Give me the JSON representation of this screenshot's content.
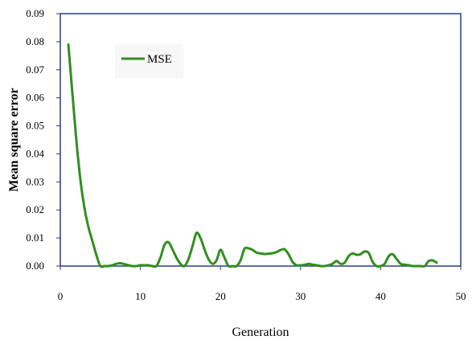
{
  "chart_data": {
    "type": "line",
    "title": "",
    "xlabel": "Generation",
    "ylabel": "Mean square error",
    "xlim": [
      0,
      50
    ],
    "ylim": [
      0,
      0.09
    ],
    "x_ticks": [
      "0",
      "10",
      "20",
      "30",
      "40",
      "50"
    ],
    "y_ticks": [
      "0.00",
      "0.01",
      "0.02",
      "0.03",
      "0.04",
      "0.05",
      "0.06",
      "0.07",
      "0.08",
      "0.09"
    ],
    "grid": false,
    "legend_position": "top-left",
    "series": [
      {
        "name": "MSE",
        "color": "#2f8f1f",
        "x": [
          1,
          1.5,
          2,
          2.5,
          3,
          3.5,
          4,
          4.5,
          5,
          5.5,
          6,
          6.5,
          7,
          7.5,
          8,
          8.5,
          9,
          9.5,
          10,
          10.5,
          11,
          11.5,
          12,
          12.5,
          13,
          13.5,
          14,
          14.5,
          15,
          15.5,
          16,
          16.5,
          17,
          17.5,
          18,
          18.5,
          19,
          19.5,
          20,
          20.5,
          21,
          21.5,
          22,
          22.5,
          23,
          23.5,
          24,
          24.5,
          25,
          25.5,
          26,
          26.5,
          27,
          27.5,
          28,
          28.5,
          29,
          29.5,
          30,
          30.5,
          31,
          31.5,
          32,
          32.5,
          33,
          33.5,
          34,
          34.5,
          35,
          35.5,
          36,
          36.5,
          37,
          37.5,
          38,
          38.5,
          39,
          39.5,
          40,
          40.5,
          41,
          41.5,
          42,
          42.5,
          43,
          43.5,
          44,
          44.5,
          45,
          45.5,
          46,
          46.5,
          47
        ],
        "y": [
          0.079,
          0.062,
          0.045,
          0.031,
          0.021,
          0.014,
          0.009,
          0.004,
          0.0,
          0.0,
          0.0,
          0.0003,
          0.0008,
          0.001,
          0.0007,
          0.0003,
          0.0,
          0.0,
          0.0003,
          0.0003,
          0.0003,
          0.0,
          0.0,
          0.003,
          0.0075,
          0.0085,
          0.006,
          0.003,
          0.0008,
          0.0,
          0.0025,
          0.007,
          0.0118,
          0.01,
          0.006,
          0.0025,
          0.0008,
          0.002,
          0.0058,
          0.003,
          0.0,
          0.0,
          0.0,
          0.002,
          0.0062,
          0.0063,
          0.0058,
          0.0048,
          0.0045,
          0.0043,
          0.0044,
          0.0046,
          0.005,
          0.0057,
          0.006,
          0.0042,
          0.0015,
          0.0003,
          0.0003,
          0.0004,
          0.0008,
          0.0005,
          0.0003,
          0.0,
          0.0,
          0.0003,
          0.0008,
          0.0018,
          0.0008,
          0.0012,
          0.0035,
          0.0045,
          0.004,
          0.0042,
          0.0052,
          0.0047,
          0.0015,
          0.0,
          0.0,
          0.0008,
          0.0035,
          0.0042,
          0.0025,
          0.0008,
          0.0005,
          0.0003,
          0.0,
          0.0,
          0.0,
          0.0,
          0.0018,
          0.002,
          0.0012
        ]
      }
    ]
  }
}
